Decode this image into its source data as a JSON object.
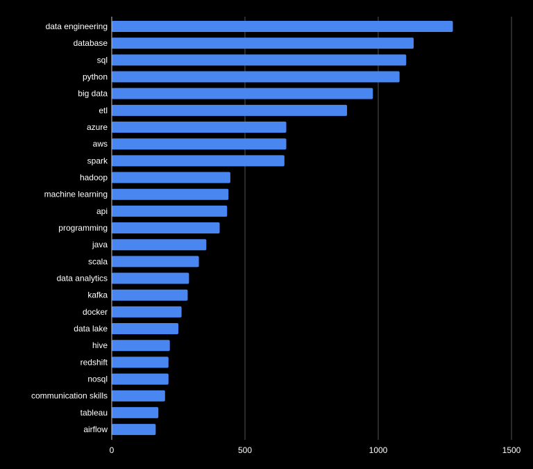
{
  "chart_data": {
    "type": "bar",
    "orientation": "horizontal",
    "categories": [
      "data engineering",
      "database",
      "sql",
      "python",
      "big data",
      "etl",
      "azure",
      "aws",
      "spark",
      "hadoop",
      "machine learning",
      "api",
      "programming",
      "java",
      "scala",
      "data analytics",
      "kafka",
      "docker",
      "data lake",
      "hive",
      "redshift",
      "nosql",
      "communication skills",
      "tableau",
      "airflow"
    ],
    "values": [
      1280,
      1133,
      1105,
      1080,
      980,
      883,
      655,
      655,
      648,
      445,
      438,
      433,
      405,
      355,
      327,
      290,
      285,
      262,
      250,
      218,
      213,
      213,
      200,
      175,
      165
    ],
    "xlim": [
      0,
      1500
    ],
    "xticks": [
      0,
      500,
      1000,
      1500
    ],
    "grid": true,
    "bar_color": "#4a86f0",
    "background": "#000000",
    "text_color": "#ffffff",
    "grid_color": "#555555"
  }
}
